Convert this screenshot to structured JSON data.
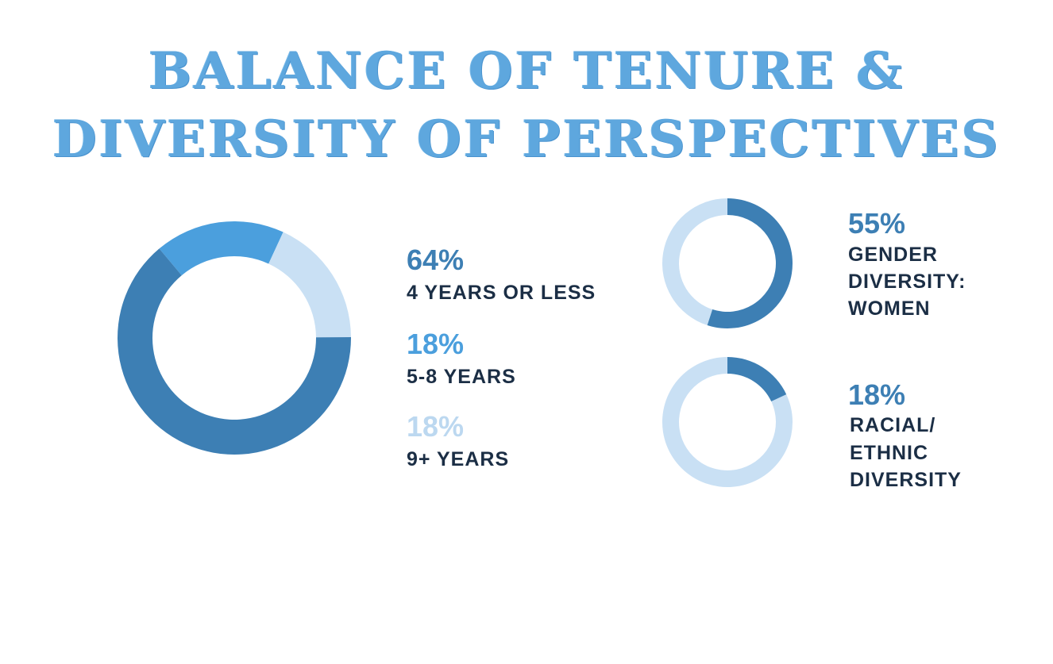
{
  "title": {
    "line1": "BALANCE OF TENURE &",
    "line2": "DIVERSITY OF PERSPECTIVES"
  },
  "colors": {
    "dark": "#3d7fb4",
    "medium": "#4b9fdd",
    "light": "#c9e0f4",
    "text": "#1b2e45"
  },
  "chart_data": [
    {
      "type": "pie",
      "variant": "donut",
      "series": [
        {
          "label": "4 YEARS OR LESS",
          "value": 64,
          "display": "64%",
          "color": "#3d7fb4"
        },
        {
          "label": "5-8 YEARS",
          "value": 18,
          "display": "18%",
          "color": "#4b9fdd"
        },
        {
          "label": "9+ YEARS",
          "value": 18,
          "display": "18%",
          "color": "#c9e0f4"
        }
      ]
    },
    {
      "type": "pie",
      "variant": "donut",
      "value": 55,
      "display": "55%",
      "label_lines": [
        "GENDER",
        "DIVERSITY:",
        "WOMEN"
      ],
      "color": "#3d7fb4",
      "remainder_color": "#c9e0f4"
    },
    {
      "type": "pie",
      "variant": "donut",
      "value": 18,
      "display": "18%",
      "label_lines": [
        "RACIAL/",
        "ETHNIC",
        "DIVERSITY"
      ],
      "color": "#3d7fb4",
      "remainder_color": "#c9e0f4"
    }
  ]
}
